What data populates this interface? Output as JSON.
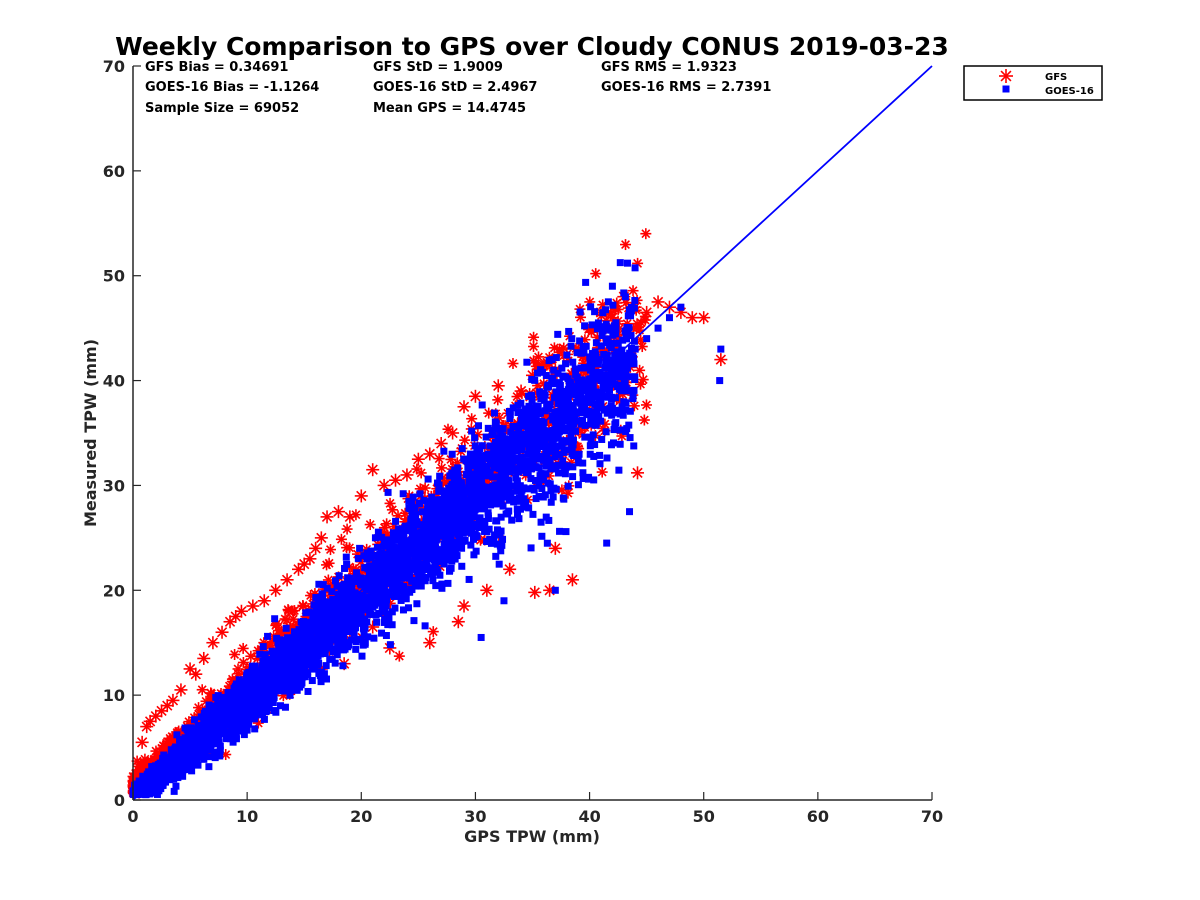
{
  "chart_data": {
    "type": "scatter",
    "title": "Weekly Comparison to GPS over Cloudy CONUS 2019-03-23",
    "xlabel": "GPS TPW (mm)",
    "ylabel": "Measured TPW (mm)",
    "xlim": [
      0,
      70
    ],
    "ylim": [
      0,
      70
    ],
    "xticks": [
      "0",
      "10",
      "20",
      "30",
      "40",
      "50",
      "60",
      "70"
    ],
    "yticks": [
      "0",
      "10",
      "20",
      "30",
      "40",
      "50",
      "60",
      "70"
    ],
    "grid": false,
    "legend_position": "outside-top-right",
    "stats": [
      "GFS Bias = 0.34691",
      "GFS StD = 1.9009",
      "GFS RMS = 1.9323",
      "GOES-16 Bias = -1.1264",
      "GOES-16 StD = 2.4967",
      "GOES-16 RMS = 2.7391",
      "Sample Size = 69052",
      "Mean GPS = 14.4745"
    ],
    "reference_line": {
      "x": [
        0,
        70
      ],
      "y": [
        0,
        70
      ],
      "color": "#0000ff"
    },
    "series": [
      {
        "name": "GFS",
        "marker": "asterisk",
        "color": "#ff0000",
        "x": [
          0.2,
          0.5,
          0.8,
          1.2,
          1.5,
          2.0,
          2.5,
          3.0,
          3.5,
          4.2,
          5.0,
          5.5,
          6.2,
          7.0,
          7.8,
          8.5,
          9.0,
          9.5,
          10.5,
          11.5,
          12.5,
          13.5,
          14.5,
          15.0,
          15.5,
          16.0,
          16.5,
          17.0,
          18.0,
          19.0,
          20.0,
          21.0,
          22.0,
          23.0,
          24.0,
          25.0,
          26.0,
          27.0,
          28.0,
          29.0,
          30.0,
          32.0,
          34.0,
          35.0,
          36.0,
          37.0,
          38.0,
          39.0,
          40.0,
          41.0,
          42.0,
          43.0,
          44.0,
          45.0,
          46.0,
          47.0,
          48.0,
          49.0,
          50.0,
          51.5,
          36.5,
          38.5,
          35.2,
          44.2,
          37.0,
          29.0,
          31.0,
          26.0,
          28.5,
          33.0,
          24.0,
          16.5,
          21.0,
          22.5,
          18.5
        ],
        "y": [
          1.5,
          2.0,
          5.5,
          7.0,
          7.5,
          8.0,
          8.5,
          9.0,
          9.5,
          10.5,
          12.5,
          12.0,
          13.5,
          15.0,
          16.0,
          17.0,
          17.5,
          18.0,
          18.5,
          19.0,
          20.0,
          21.0,
          22.0,
          22.5,
          23.0,
          24.0,
          25.0,
          27.0,
          27.5,
          27.0,
          29.0,
          31.5,
          30.0,
          30.5,
          31.0,
          32.5,
          33.0,
          34.0,
          35.0,
          37.5,
          38.5,
          39.5,
          39.0,
          40.5,
          41.5,
          41.0,
          42.5,
          43.0,
          45.0,
          46.5,
          46.0,
          48.0,
          47.0,
          46.5,
          47.5,
          47.0,
          46.5,
          46.0,
          46.0,
          42.0,
          20.0,
          21.0,
          19.8,
          31.2,
          24.0,
          18.5,
          20.0,
          15.0,
          17.0,
          22.0,
          20.5,
          12.5,
          16.5,
          14.5,
          13.0
        ]
      },
      {
        "name": "GOES-16",
        "marker": "square",
        "color": "#0000ff",
        "x": [
          0.5,
          1.0,
          1.5,
          2.0,
          2.5,
          3.0,
          3.5,
          4.0,
          4.5,
          5.0,
          5.5,
          6.0,
          6.5,
          7.0,
          7.5,
          8.0,
          8.5,
          9.0,
          9.5,
          10.0,
          11.0,
          12.0,
          13.0,
          14.0,
          15.0,
          16.0,
          17.0,
          18.0,
          19.0,
          20.0,
          21.0,
          22.0,
          23.0,
          24.0,
          25.0,
          26.0,
          27.0,
          28.0,
          29.0,
          30.0,
          31.0,
          32.0,
          33.0,
          34.0,
          35.0,
          36.0,
          37.0,
          38.0,
          39.0,
          40.0,
          41.0,
          42.0,
          43.0,
          44.0,
          45.0,
          46.0,
          47.0,
          48.0,
          51.5,
          51.4,
          30.5,
          32.5,
          37.0,
          41.5,
          43.5,
          42.0
        ],
        "y": [
          1.0,
          2.0,
          2.5,
          3.0,
          3.5,
          4.0,
          4.5,
          5.0,
          5.5,
          6.0,
          6.5,
          7.0,
          7.5,
          8.0,
          8.5,
          9.0,
          9.5,
          10.0,
          10.5,
          11.0,
          12.0,
          13.0,
          14.0,
          15.0,
          16.0,
          17.0,
          17.5,
          18.5,
          19.5,
          20.5,
          21.5,
          22.5,
          23.5,
          24.0,
          25.0,
          26.0,
          27.0,
          28.0,
          29.0,
          30.0,
          31.0,
          32.0,
          33.0,
          34.0,
          35.0,
          36.0,
          37.0,
          38.0,
          38.5,
          39.5,
          40.0,
          41.0,
          42.0,
          43.0,
          44.0,
          45.0,
          46.0,
          47.0,
          43.0,
          40.0,
          15.5,
          19.0,
          20.0,
          24.5,
          27.5,
          49.0
        ]
      }
    ]
  }
}
